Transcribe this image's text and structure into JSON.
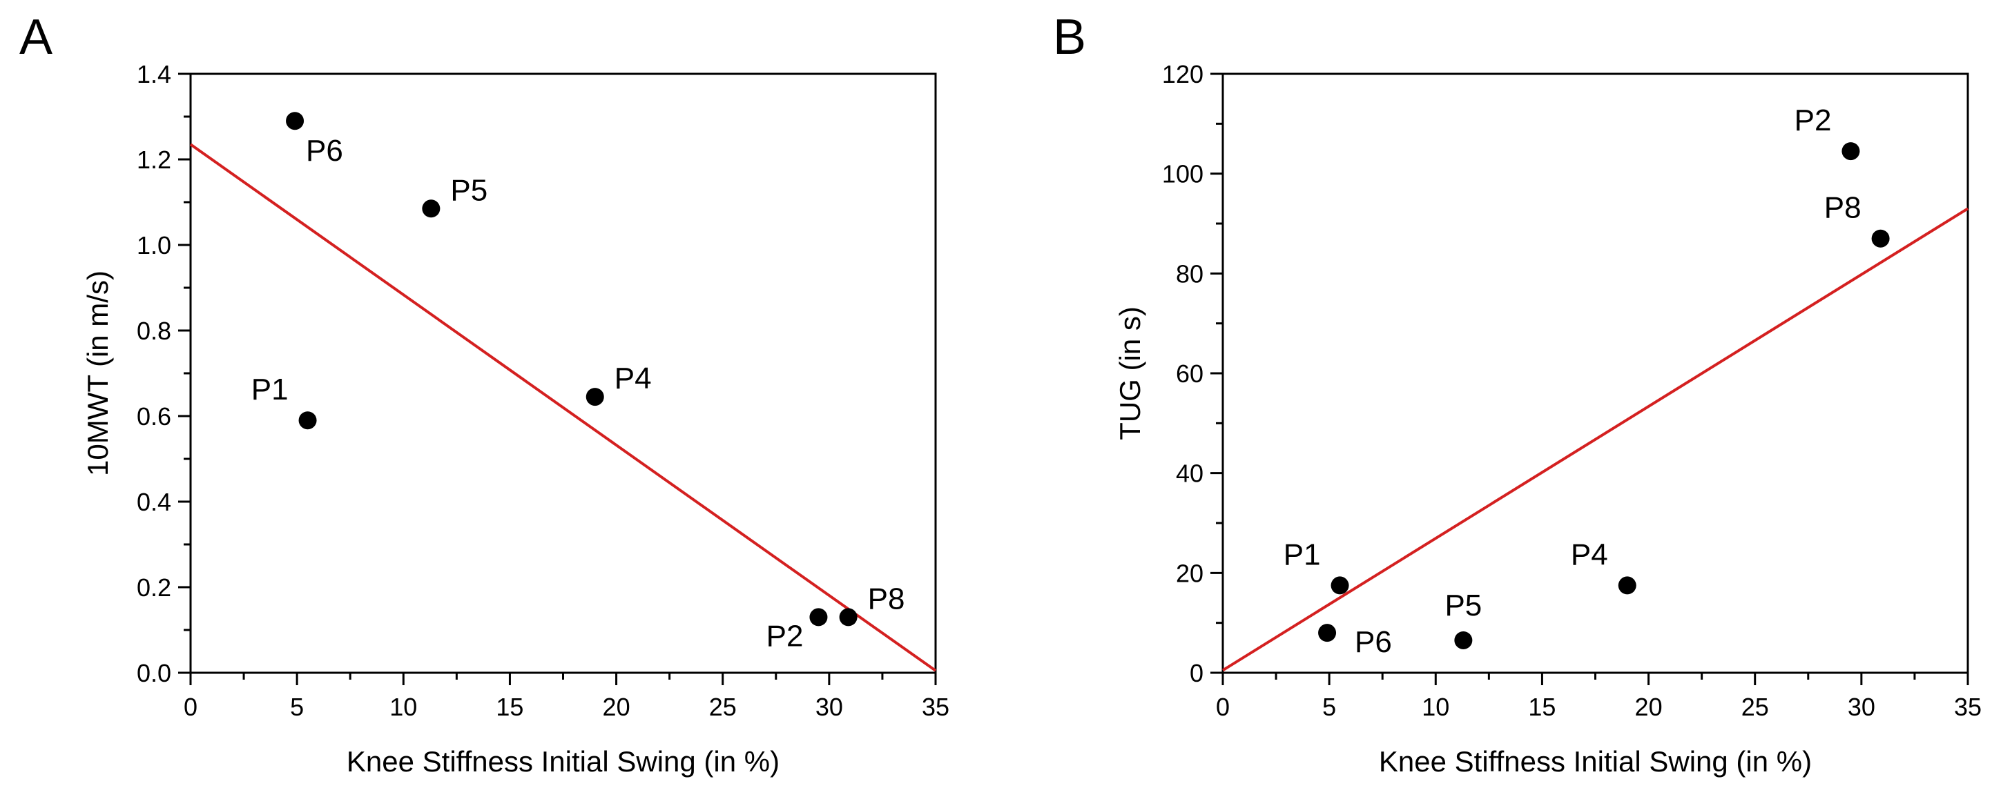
{
  "chart_data": [
    {
      "panel": "A",
      "type": "scatter",
      "xlabel": "Knee Stiffness Initial Swing (in %)",
      "ylabel": "10MWT (in m/s)",
      "xlim": [
        0,
        35
      ],
      "ylim": [
        0.0,
        1.4
      ],
      "xticks": [
        "0",
        "5",
        "10",
        "15",
        "20",
        "25",
        "30",
        "35"
      ],
      "yticks": [
        "0.0",
        "0.2",
        "0.4",
        "0.6",
        "0.8",
        "1.0",
        "1.2",
        "1.4"
      ],
      "points": [
        {
          "label": "P6",
          "x": 4.9,
          "y": 1.29,
          "label_pos": "below-right"
        },
        {
          "label": "P5",
          "x": 11.3,
          "y": 1.085,
          "label_pos": "upper-right"
        },
        {
          "label": "P1",
          "x": 5.5,
          "y": 0.59,
          "label_pos": "upper-left"
        },
        {
          "label": "P4",
          "x": 19.0,
          "y": 0.645,
          "label_pos": "upper-right"
        },
        {
          "label": "P2",
          "x": 29.5,
          "y": 0.13,
          "label_pos": "lower-left"
        },
        {
          "label": "P8",
          "x": 30.9,
          "y": 0.13,
          "label_pos": "upper-right"
        }
      ],
      "fit_line": {
        "x": [
          0,
          35
        ],
        "y": [
          1.235,
          0.005
        ],
        "color": "#d42020"
      }
    },
    {
      "panel": "B",
      "type": "scatter",
      "xlabel": "Knee Stiffness Initial Swing (in %)",
      "ylabel": "TUG (in s)",
      "xlim": [
        0,
        35
      ],
      "ylim": [
        0,
        120
      ],
      "xticks": [
        "0",
        "5",
        "10",
        "15",
        "20",
        "25",
        "30",
        "35"
      ],
      "yticks": [
        "0",
        "20",
        "40",
        "60",
        "80",
        "100",
        "120"
      ],
      "points": [
        {
          "label": "P2",
          "x": 29.5,
          "y": 104.5,
          "label_pos": "upper-left"
        },
        {
          "label": "P8",
          "x": 30.9,
          "y": 87.0,
          "label_pos": "upper-left"
        },
        {
          "label": "P1",
          "x": 5.5,
          "y": 17.5,
          "label_pos": "upper-left"
        },
        {
          "label": "P6",
          "x": 4.9,
          "y": 8.0,
          "label_pos": "right"
        },
        {
          "label": "P5",
          "x": 11.3,
          "y": 6.5,
          "label_pos": "above"
        },
        {
          "label": "P4",
          "x": 19.0,
          "y": 17.5,
          "label_pos": "upper-left"
        }
      ],
      "fit_line": {
        "x": [
          0,
          35
        ],
        "y": [
          0.5,
          93.0
        ],
        "color": "#d42020"
      }
    }
  ]
}
